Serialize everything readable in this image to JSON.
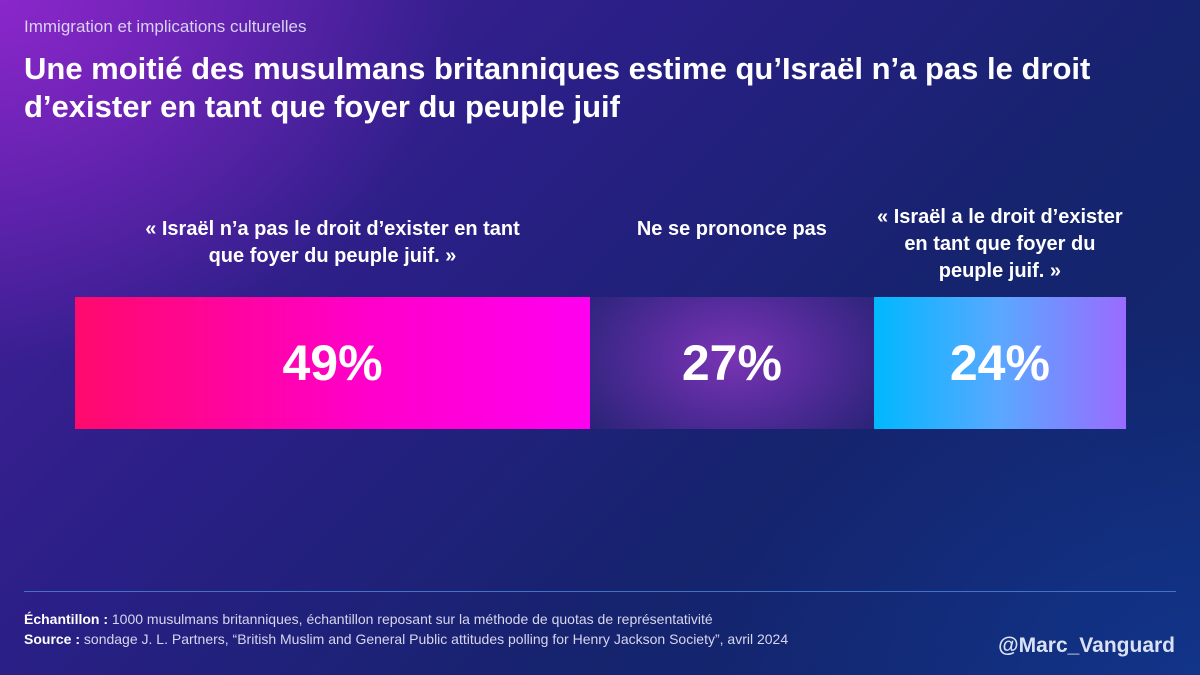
{
  "header": {
    "subtitle": "Immigration et implications culturelles",
    "title": "Une moitié des musulmans britanniques estime qu’Israël n’a pas le droit d’exister en tant que foyer du peuple juif"
  },
  "chart_data": {
    "type": "bar",
    "orientation": "horizontal-stacked",
    "title": "Une moitié des musulmans britanniques estime qu’Israël n’a pas le droit d’exister en tant que foyer du peuple juif",
    "categories": [
      "« Israël n’a pas le droit d’exister en tant que foyer du peuple juif. »",
      "Ne se prononce pas",
      "« Israël a le droit d’exister en tant que foyer du peuple juif. »"
    ],
    "values": [
      49,
      27,
      24
    ],
    "value_labels": [
      "49%",
      "27%",
      "24%"
    ],
    "unit": "%",
    "xlim": [
      0,
      100
    ],
    "colors": [
      "#ff0a6c",
      "#4b2a9a",
      "#00b8ff"
    ]
  },
  "footer": {
    "sample_label": "Échantillon :",
    "sample_text": "1000 musulmans britanniques, échantillon reposant sur la méthode de quotas de représentativité",
    "source_label": "Source :",
    "source_text": "sondage J. L. Partners, “British Muslim and General Public attitudes polling for Henry Jackson Society”, avril 2024",
    "handle": "@Marc_Vanguard"
  }
}
